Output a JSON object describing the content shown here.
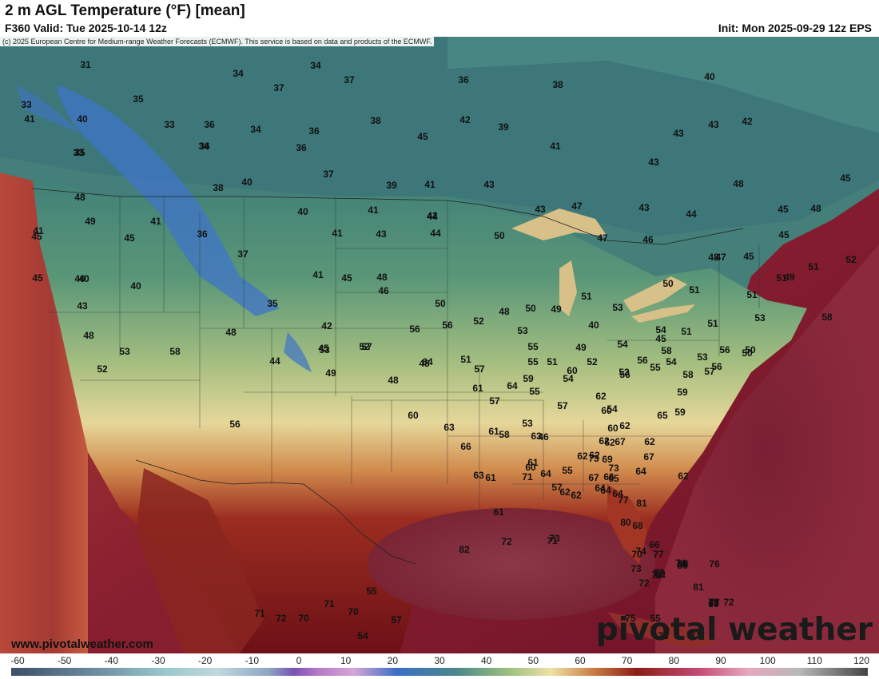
{
  "header": {
    "title": "2 m AGL Temperature (°F) [mean]",
    "valid": "F360 Valid: Tue 2025-10-14 12z",
    "init": "Init: Mon 2025-09-29 12z EPS"
  },
  "map": {
    "copyright": "(c) 2025 European Centre for Medium-range Weather Forecasts (ECMWF). This service is based on data and products of the ECMWF.",
    "watermark_url": "www.pivotalweather.com",
    "watermark_brand": "pivotal weather",
    "temperature_labels": [
      "31",
      "34",
      "34",
      "37",
      "37",
      "36",
      "38",
      "40",
      "33",
      "35",
      "33",
      "36",
      "34",
      "36",
      "42",
      "39",
      "41",
      "43",
      "41",
      "40",
      "35",
      "33",
      "36",
      "45",
      "38",
      "43",
      "34",
      "36",
      "37",
      "41",
      "43",
      "43",
      "45",
      "48",
      "42",
      "38",
      "40",
      "39",
      "43",
      "47",
      "43",
      "44",
      "45",
      "48",
      "48",
      "41",
      "44",
      "47",
      "40",
      "41",
      "42",
      "45",
      "49",
      "36",
      "41",
      "50",
      "46",
      "47",
      "45",
      "49",
      "41",
      "43",
      "44",
      "48",
      "51",
      "52",
      "45",
      "40",
      "45",
      "40",
      "37",
      "35",
      "43",
      "46",
      "50",
      "51",
      "48",
      "49",
      "50",
      "45",
      "45",
      "40",
      "41",
      "51",
      "51",
      "51",
      "53",
      "52",
      "42",
      "48",
      "45",
      "48",
      "52",
      "48",
      "56",
      "50",
      "50",
      "54",
      "55",
      "54",
      "51",
      "51",
      "53",
      "49",
      "56",
      "52",
      "53",
      "58",
      "44",
      "40",
      "48",
      "51",
      "53",
      "57",
      "53",
      "49",
      "45",
      "48",
      "53",
      "58",
      "51",
      "52",
      "55",
      "56",
      "50",
      "55",
      "64",
      "56",
      "54",
      "57",
      "57",
      "58",
      "56",
      "53",
      "56",
      "59",
      "54",
      "59",
      "61",
      "60",
      "57",
      "60",
      "62",
      "62",
      "64",
      "61",
      "63",
      "55",
      "58",
      "59",
      "56",
      "54",
      "53",
      "46",
      "57",
      "63",
      "62",
      "60",
      "63",
      "64",
      "55",
      "62",
      "66",
      "65",
      "62",
      "58",
      "67",
      "64",
      "61",
      "60",
      "62",
      "65",
      "62",
      "61",
      "64",
      "62",
      "60",
      "73",
      "62",
      "69",
      "71",
      "64",
      "62",
      "57",
      "61",
      "73",
      "67",
      "67",
      "66",
      "64",
      "68",
      "66",
      "70",
      "73",
      "72",
      "71",
      "80",
      "81",
      "82",
      "72",
      "73",
      "77",
      "74",
      "77",
      "80",
      "74",
      "81",
      "80",
      "75",
      "78",
      "76",
      "77",
      "80",
      "76",
      "71",
      "57",
      "54",
      "55",
      "68",
      "54",
      "72",
      "73",
      "66",
      "71",
      "70",
      "72",
      "71",
      "70",
      "57",
      "54",
      "55"
    ],
    "colorbar_ticks": [
      "-60",
      "-50",
      "-40",
      "-30",
      "-20",
      "-10",
      "0",
      "10",
      "20",
      "30",
      "40",
      "50",
      "60",
      "70",
      "80",
      "90",
      "100",
      "110",
      "120"
    ]
  }
}
